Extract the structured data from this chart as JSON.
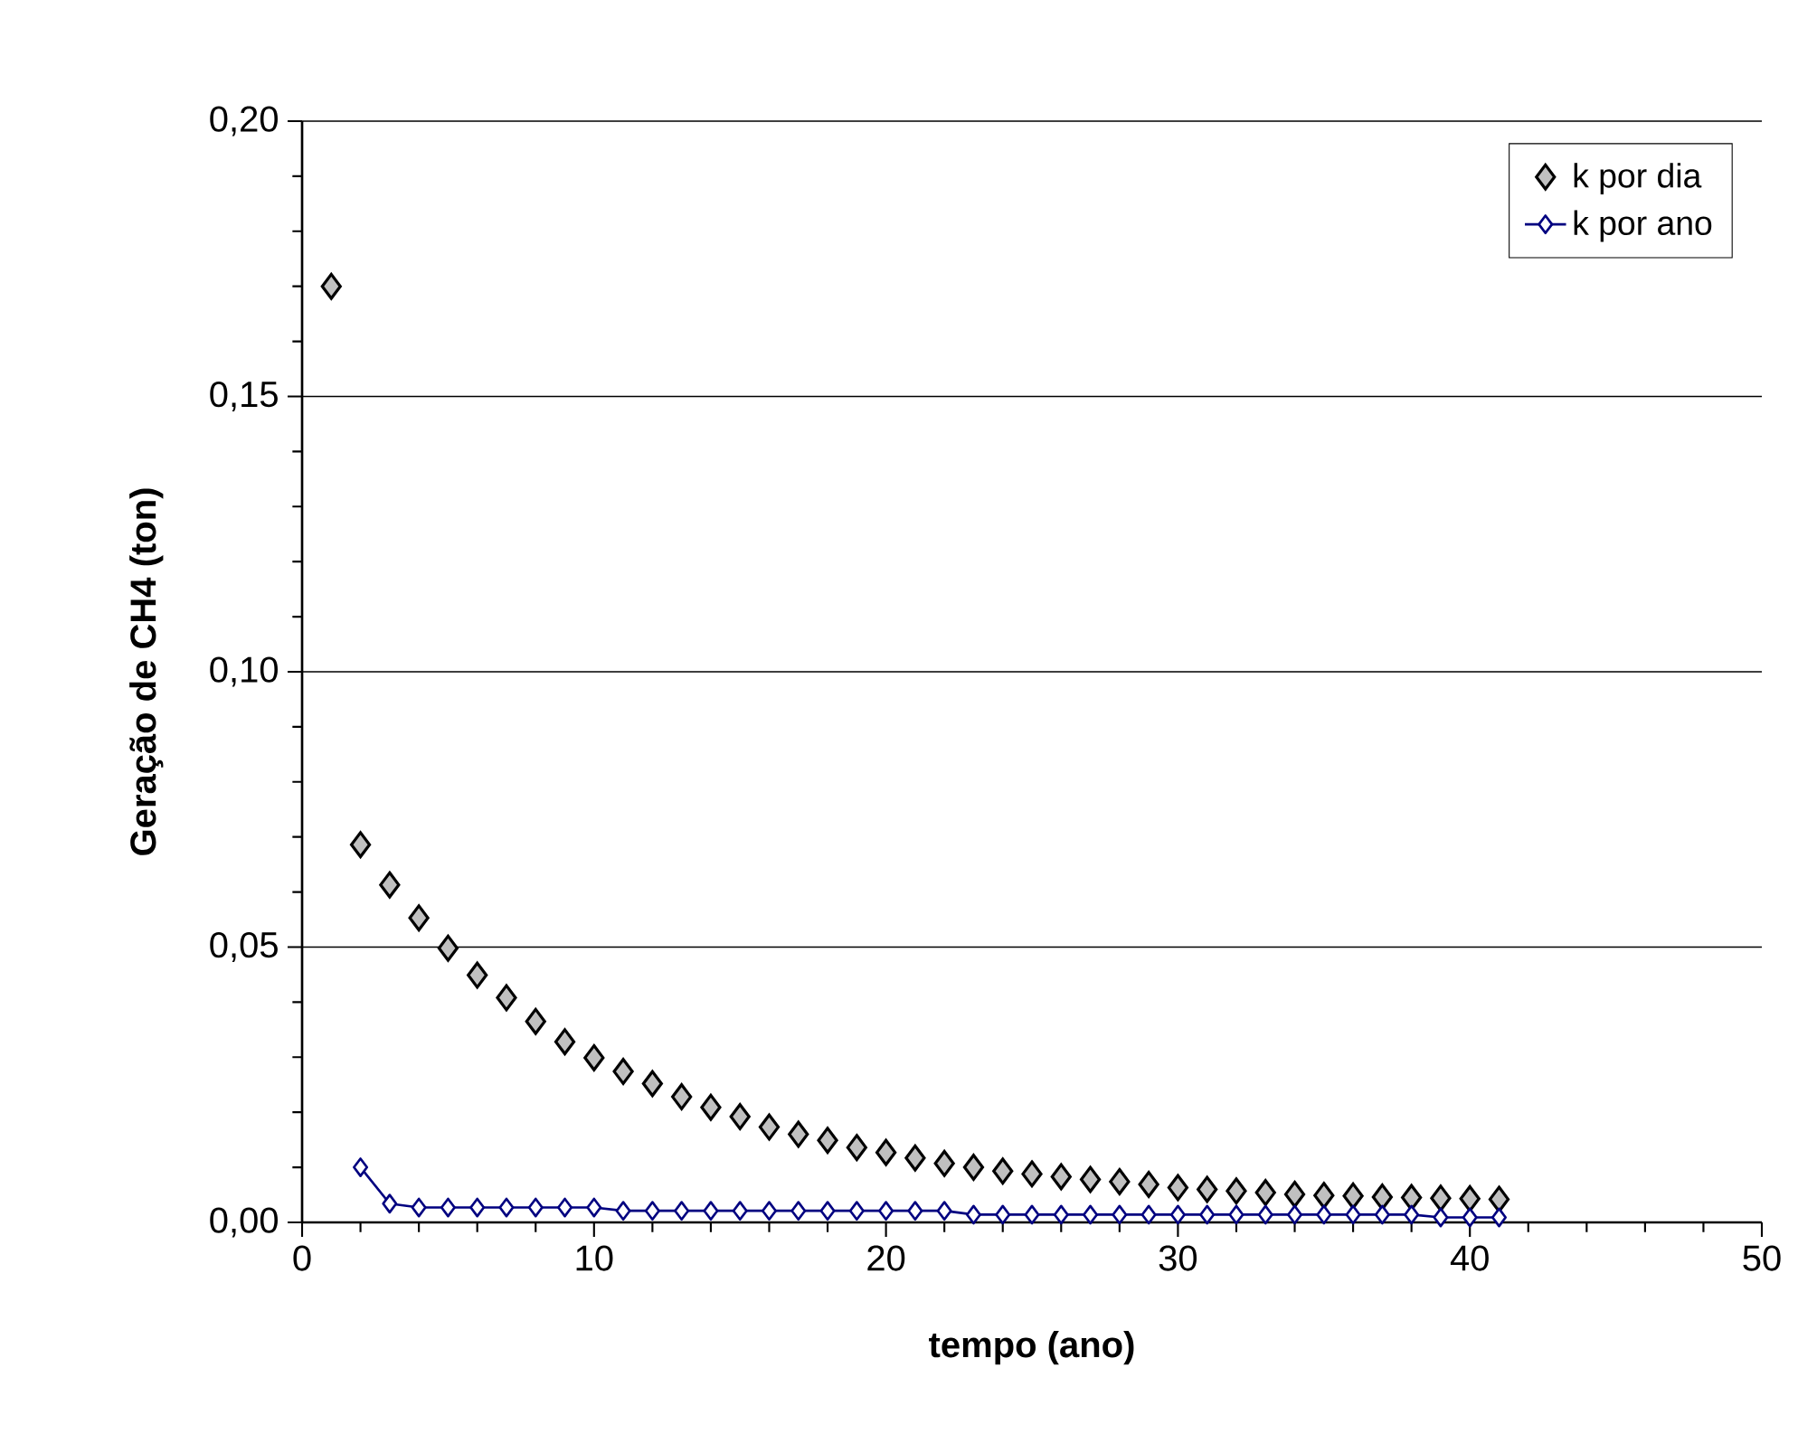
{
  "chart_data": {
    "type": "scatter",
    "xlabel": "tempo (ano)",
    "ylabel": "Geração de CH4 (ton)",
    "xlim": [
      0,
      50
    ],
    "xticks": [
      0,
      10,
      20,
      30,
      40,
      50
    ],
    "ylim": [
      0,
      0.2
    ],
    "yticks": [
      {
        "value": 0,
        "label": "0,00"
      },
      {
        "value": 0.05,
        "label": "0,05"
      },
      {
        "value": 0.1,
        "label": "0,10"
      },
      {
        "value": 0.15,
        "label": "0,15"
      },
      {
        "value": 0.2,
        "label": "0,20"
      }
    ],
    "grid": "y",
    "legend": "top right",
    "marker": "diamond",
    "series": [
      {
        "name": "k por dia",
        "color": "#c0c0c0",
        "x": [
          1,
          2,
          3,
          4,
          5,
          6,
          7,
          8,
          9,
          10,
          11,
          12,
          13,
          14,
          15,
          16,
          17,
          18,
          19,
          20,
          21,
          22,
          23,
          24,
          25,
          26,
          27,
          28,
          29,
          30,
          31,
          32,
          33,
          34,
          35,
          36,
          37,
          38,
          39,
          40,
          41
        ],
        "values": [
          0.17,
          0.0686,
          0.0613,
          0.0553,
          0.0498,
          0.0449,
          0.0408,
          0.0365,
          0.0328,
          0.0299,
          0.0274,
          0.0252,
          0.0228,
          0.0209,
          0.0192,
          0.0173,
          0.016,
          0.0149,
          0.0136,
          0.0127,
          0.0117,
          0.0107,
          0.01,
          0.0093,
          0.0088,
          0.0083,
          0.0078,
          0.0074,
          0.0069,
          0.0063,
          0.006,
          0.0057,
          0.0054,
          0.0051,
          0.0049,
          0.0048,
          0.0046,
          0.0045,
          0.0044,
          0.0043,
          0.0042
        ]
      },
      {
        "name": "k por ano",
        "type": "line",
        "color": "#000080",
        "x": [
          2,
          3,
          4,
          5,
          6,
          7,
          8,
          9,
          10,
          11,
          12,
          13,
          14,
          15,
          16,
          17,
          18,
          19,
          20,
          21,
          22,
          23,
          24,
          25,
          26,
          27,
          28,
          29,
          30,
          31,
          32,
          33,
          34,
          35,
          36,
          37,
          38,
          39,
          40,
          41
        ],
        "values": [
          0.01,
          0.0034,
          0.0027,
          0.0027,
          0.0027,
          0.0027,
          0.0027,
          0.0027,
          0.0027,
          0.0021,
          0.0021,
          0.0021,
          0.0021,
          0.0021,
          0.0021,
          0.0021,
          0.0021,
          0.0021,
          0.0021,
          0.0021,
          0.0021,
          0.0014,
          0.0014,
          0.0014,
          0.0014,
          0.0014,
          0.0014,
          0.0014,
          0.0014,
          0.0014,
          0.0014,
          0.0014,
          0.0014,
          0.0014,
          0.0014,
          0.0014,
          0.0014,
          0.0009,
          0.0009,
          0.0009
        ]
      }
    ]
  }
}
